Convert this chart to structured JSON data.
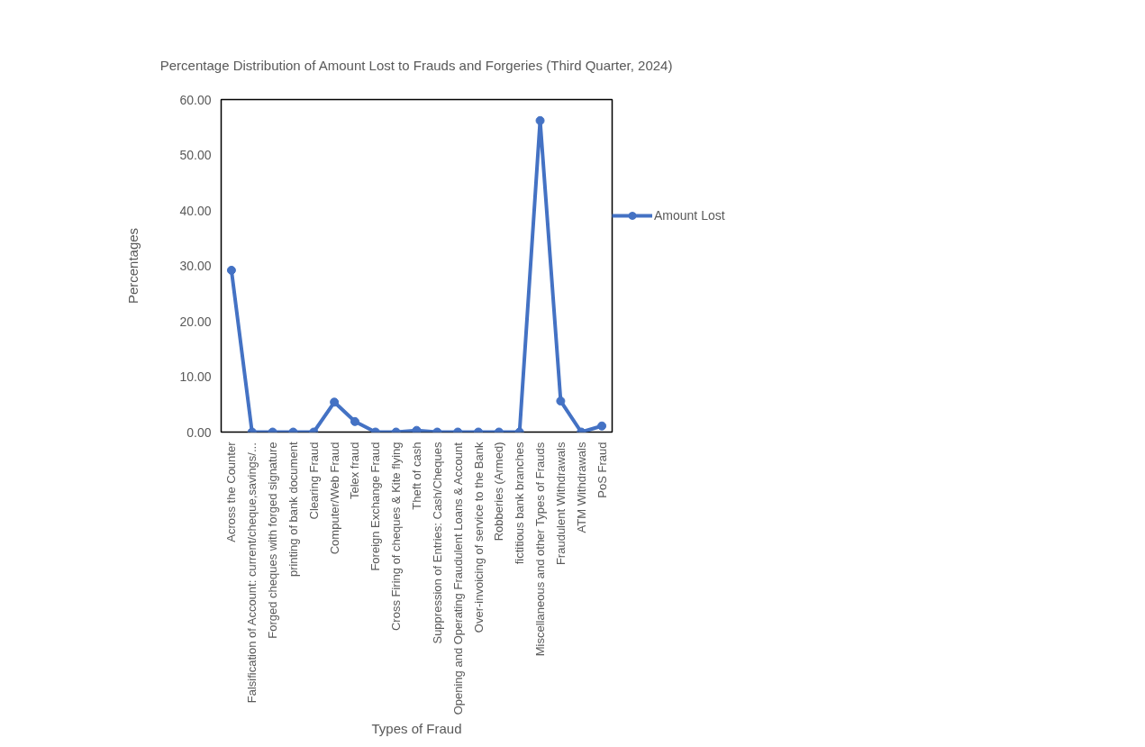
{
  "chart_data": {
    "type": "line",
    "title": "Percentage Distribution of Amount Lost to Frauds and Forgeries (Third Quarter, 2024)",
    "xlabel": "Types of Fraud",
    "ylabel": "Percentages",
    "categories": [
      "Across the Counter",
      "Falsification of Account: current/cheque,savings/...",
      "Forged cheques with forged signature",
      "printing of bank document",
      "Clearing Fraud",
      "Computer/Web Fraud",
      "Telex fraud",
      "Foreign Exchange Fraud",
      "Cross Firing of cheques & Kite flying",
      "Theft of cash",
      "Suppression of Entries: Cash/Cheques",
      "Opening and Operating Fraudulent Loans & Account",
      "Over-invoicing of service to the Bank",
      "Robberies (Armed)",
      "fictitious bank branches",
      "Miscellaneous and other Types of Frauds",
      "Fraudulent Withdrawals",
      "ATM Withdrawals",
      "PoS Fraud"
    ],
    "series": [
      {
        "name": "Amount Lost",
        "color": "#4472c4",
        "values": [
          29.2,
          0,
          0,
          0,
          0,
          5.4,
          1.9,
          0,
          0,
          0.3,
          0,
          0,
          0,
          0,
          0,
          56.2,
          5.6,
          0,
          1.1
        ]
      }
    ],
    "ylim": [
      0,
      60
    ],
    "yticks": [
      {
        "value": 0,
        "label": "0.00"
      },
      {
        "value": 10,
        "label": "10.00"
      },
      {
        "value": 20,
        "label": "20.00"
      },
      {
        "value": 30,
        "label": "30.00"
      },
      {
        "value": 40,
        "label": "40.00"
      },
      {
        "value": 50,
        "label": "50.00"
      },
      {
        "value": 60,
        "label": "60.00"
      }
    ],
    "grid": false,
    "legend": "right",
    "marker": "circle",
    "line_style": "solid"
  }
}
